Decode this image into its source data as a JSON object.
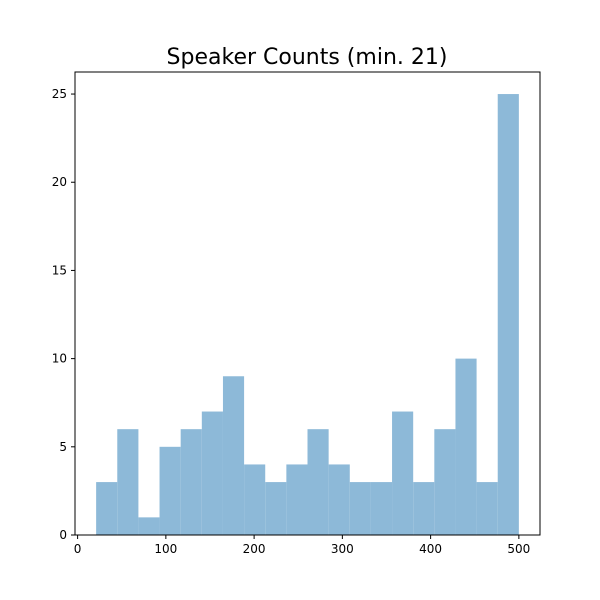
{
  "chart_data": {
    "type": "bar",
    "title": "Speaker Counts (min. 21)",
    "xlabel": "",
    "ylabel": "",
    "grid": false,
    "bar_color": "#8db9d8",
    "xlim": [
      21,
      500
    ],
    "ylim": [
      0,
      25
    ],
    "bin_edges": [
      21,
      44.95,
      68.9,
      92.85,
      116.8,
      140.75,
      164.7,
      188.65,
      212.6,
      236.55,
      260.5,
      284.45,
      308.4,
      332.35,
      356.3,
      380.25,
      404.2,
      428.15,
      452.1,
      476.05,
      500
    ],
    "values": [
      3,
      6,
      1,
      5,
      6,
      7,
      9,
      4,
      3,
      4,
      6,
      4,
      3,
      3,
      7,
      3,
      6,
      10,
      3,
      25
    ],
    "x_ticks": [
      0,
      100,
      200,
      300,
      400,
      500
    ],
    "y_ticks": [
      0,
      5,
      10,
      15,
      20,
      25
    ]
  }
}
